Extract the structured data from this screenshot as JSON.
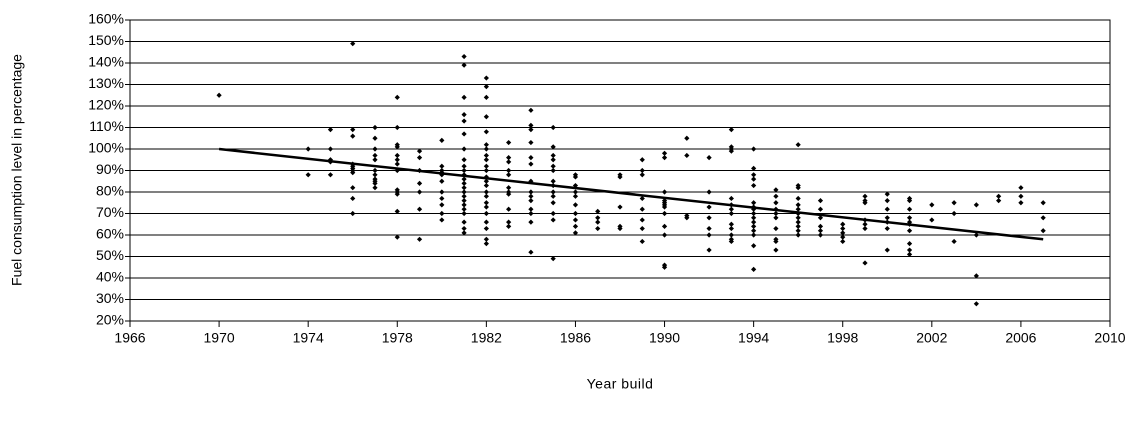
{
  "chart_data": {
    "type": "scatter",
    "xlabel": "Year build",
    "ylabel": "Fuel consumption level in percentage",
    "color": "#000000",
    "grid": true,
    "xlim": [
      1966,
      2010
    ],
    "xticks": [
      1966,
      1970,
      1974,
      1978,
      1982,
      1986,
      1990,
      1994,
      1998,
      2002,
      2006,
      2010
    ],
    "ylim": [
      20,
      160
    ],
    "yticks": [
      {
        "value": 20,
        "label": "20%"
      },
      {
        "value": 30,
        "label": "30%"
      },
      {
        "value": 40,
        "label": "40%"
      },
      {
        "value": 50,
        "label": "50%"
      },
      {
        "value": 60,
        "label": "60%"
      },
      {
        "value": 70,
        "label": "70%"
      },
      {
        "value": 80,
        "label": "80%"
      },
      {
        "value": 90,
        "label": "90%"
      },
      {
        "value": 100,
        "label": "100%"
      },
      {
        "value": 110,
        "label": "110%"
      },
      {
        "value": 120,
        "label": "120%"
      },
      {
        "value": 130,
        "label": "130%"
      },
      {
        "value": 140,
        "label": "140%"
      },
      {
        "value": 150,
        "label": "150%"
      },
      {
        "value": 160,
        "label": "160%"
      }
    ],
    "x": [
      1970,
      1974,
      1974,
      1975,
      1975,
      1975,
      1975,
      1975,
      1976,
      1976,
      1976,
      1976,
      1976,
      1976,
      1976,
      1976,
      1976,
      1976,
      1976,
      1977,
      1977,
      1977,
      1977,
      1977,
      1977,
      1977,
      1977,
      1977,
      1977,
      1977,
      1978,
      1978,
      1978,
      1978,
      1978,
      1978,
      1978,
      1978,
      1978,
      1978,
      1978,
      1978,
      1978,
      1979,
      1979,
      1979,
      1979,
      1979,
      1979,
      1979,
      1980,
      1980,
      1980,
      1980,
      1980,
      1980,
      1980,
      1980,
      1980,
      1980,
      1980,
      1981,
      1981,
      1981,
      1981,
      1981,
      1981,
      1981,
      1981,
      1981,
      1981,
      1981,
      1981,
      1981,
      1981,
      1981,
      1981,
      1981,
      1981,
      1981,
      1981,
      1981,
      1981,
      1981,
      1982,
      1982,
      1982,
      1982,
      1982,
      1982,
      1982,
      1982,
      1982,
      1982,
      1982,
      1982,
      1982,
      1982,
      1982,
      1982,
      1982,
      1982,
      1982,
      1982,
      1982,
      1982,
      1982,
      1983,
      1983,
      1983,
      1983,
      1983,
      1983,
      1983,
      1983,
      1983,
      1983,
      1983,
      1984,
      1984,
      1984,
      1984,
      1984,
      1984,
      1984,
      1984,
      1984,
      1984,
      1984,
      1984,
      1984,
      1984,
      1985,
      1985,
      1985,
      1985,
      1985,
      1985,
      1985,
      1985,
      1985,
      1985,
      1985,
      1985,
      1985,
      1985,
      1986,
      1986,
      1986,
      1986,
      1986,
      1986,
      1986,
      1986,
      1986,
      1986,
      1987,
      1987,
      1987,
      1987,
      1988,
      1988,
      1988,
      1988,
      1988,
      1989,
      1989,
      1989,
      1989,
      1989,
      1989,
      1989,
      1989,
      1990,
      1990,
      1990,
      1990,
      1990,
      1990,
      1990,
      1990,
      1990,
      1990,
      1990,
      1990,
      1991,
      1991,
      1991,
      1991,
      1992,
      1992,
      1992,
      1992,
      1992,
      1992,
      1992,
      1993,
      1993,
      1993,
      1993,
      1993,
      1993,
      1993,
      1993,
      1993,
      1993,
      1993,
      1993,
      1993,
      1994,
      1994,
      1994,
      1994,
      1994,
      1994,
      1994,
      1994,
      1994,
      1994,
      1994,
      1994,
      1994,
      1994,
      1994,
      1994,
      1995,
      1995,
      1995,
      1995,
      1995,
      1995,
      1995,
      1995,
      1995,
      1995,
      1996,
      1996,
      1996,
      1996,
      1996,
      1996,
      1996,
      1996,
      1996,
      1996,
      1996,
      1996,
      1997,
      1997,
      1997,
      1997,
      1997,
      1997,
      1998,
      1998,
      1998,
      1998,
      1998,
      1999,
      1999,
      1999,
      1999,
      1999,
      1999,
      1999,
      2000,
      2000,
      2000,
      2000,
      2000,
      2000,
      2000,
      2001,
      2001,
      2001,
      2001,
      2001,
      2001,
      2001,
      2001,
      2001,
      2001,
      2002,
      2002,
      2003,
      2003,
      2003,
      2004,
      2004,
      2004,
      2004,
      2005,
      2005,
      2006,
      2006,
      2006,
      2007,
      2007,
      2007
    ],
    "values": [
      125,
      100,
      88,
      109,
      100,
      95,
      94,
      88,
      149,
      109,
      106,
      93,
      92,
      91,
      90,
      89,
      82,
      77,
      70,
      110,
      105,
      100,
      97,
      95,
      90,
      88,
      86,
      85,
      84,
      82,
      124,
      110,
      102,
      101,
      97,
      95,
      93,
      90,
      81,
      80,
      79,
      71,
      59,
      99,
      96,
      90,
      84,
      80,
      72,
      58,
      104,
      92,
      90,
      89,
      88,
      85,
      80,
      77,
      74,
      70,
      67,
      143,
      139,
      124,
      116,
      113,
      107,
      100,
      95,
      92,
      90,
      88,
      86,
      84,
      82,
      80,
      78,
      76,
      74,
      72,
      70,
      66,
      63,
      61,
      133,
      129,
      124,
      115,
      108,
      102,
      100,
      97,
      95,
      92,
      90,
      87,
      85,
      83,
      80,
      78,
      75,
      73,
      70,
      66,
      63,
      58,
      56,
      103,
      96,
      94,
      90,
      88,
      82,
      80,
      79,
      72,
      66,
      64,
      118,
      111,
      109,
      103,
      96,
      93,
      85,
      80,
      78,
      76,
      72,
      70,
      66,
      52,
      110,
      101,
      97,
      95,
      92,
      90,
      85,
      83,
      80,
      78,
      75,
      70,
      67,
      49,
      88,
      87,
      83,
      80,
      78,
      74,
      70,
      67,
      64,
      61,
      71,
      68,
      66,
      63,
      88,
      87,
      73,
      64,
      63,
      95,
      90,
      88,
      77,
      72,
      67,
      63,
      57,
      98,
      96,
      80,
      76,
      75,
      74,
      73,
      70,
      64,
      60,
      46,
      45,
      105,
      97,
      69,
      68,
      96,
      80,
      73,
      68,
      63,
      60,
      53,
      109,
      101,
      100,
      99,
      77,
      74,
      72,
      70,
      65,
      63,
      60,
      58,
      57,
      100,
      91,
      88,
      86,
      83,
      75,
      73,
      72,
      70,
      68,
      66,
      64,
      62,
      60,
      55,
      44,
      81,
      78,
      75,
      72,
      70,
      68,
      63,
      58,
      57,
      53,
      102,
      83,
      82,
      77,
      74,
      72,
      70,
      68,
      66,
      64,
      62,
      60,
      76,
      72,
      68,
      64,
      62,
      60,
      65,
      63,
      61,
      59,
      57,
      78,
      76,
      75,
      67,
      65,
      63,
      47,
      79,
      76,
      72,
      68,
      66,
      63,
      53,
      77,
      76,
      72,
      68,
      66,
      65,
      62,
      56,
      53,
      51,
      74,
      67,
      75,
      70,
      57,
      74,
      60,
      41,
      28,
      78,
      76,
      82,
      78,
      75,
      75,
      68,
      62
    ],
    "trendline": {
      "x": [
        1970,
        2007
      ],
      "y": [
        100,
        58
      ]
    }
  }
}
